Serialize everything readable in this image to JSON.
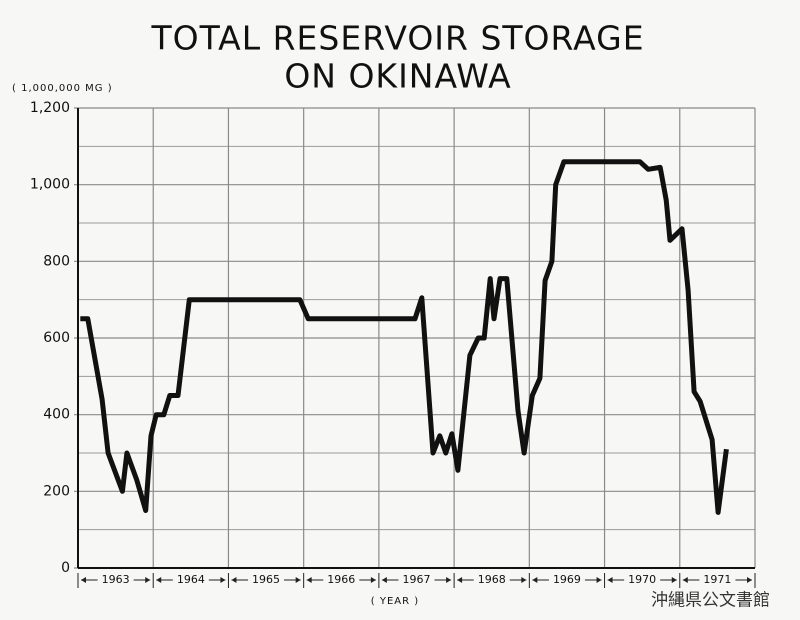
{
  "chart_data": {
    "type": "line",
    "title_lines": [
      "TOTAL RESERVOIR STORAGE",
      "ON OKINAWA"
    ],
    "y_label": "( 1,000,000 MG )",
    "x_label": "( YEAR )",
    "watermark": "沖縄県公文書館",
    "year_labels": [
      "1963",
      "1964",
      "1965",
      "1966",
      "1967",
      "1968",
      "1969",
      "1970",
      "1971"
    ],
    "xlim": [
      1963,
      1972
    ],
    "xticks": [
      1963,
      1964,
      1965,
      1966,
      1967,
      1968,
      1969,
      1970,
      1971,
      1972
    ],
    "ylim": [
      0,
      1200
    ],
    "yticks": [
      0,
      200,
      400,
      600,
      800,
      {
        "value": 1000,
        "label": "1,000"
      },
      {
        "value": 1200,
        "label": "1,200"
      }
    ],
    "minor_yticks": [
      100,
      300,
      500,
      700,
      900,
      1100
    ],
    "grid": true,
    "color": "#111111",
    "x": [
      1963.03,
      1963.13,
      1963.32,
      1963.4,
      1963.59,
      1963.65,
      1963.78,
      1963.9,
      1963.97,
      1964.04,
      1964.14,
      1964.22,
      1964.33,
      1964.48,
      1965.95,
      1966.06,
      1967.48,
      1967.57,
      1967.72,
      1967.81,
      1967.89,
      1967.97,
      1968.05,
      1968.21,
      1968.32,
      1968.4,
      1968.48,
      1968.53,
      1968.61,
      1968.7,
      1968.85,
      1968.93,
      1969.04,
      1969.14,
      1969.21,
      1969.3,
      1969.35,
      1969.46,
      1970.47,
      1970.58,
      1970.74,
      1970.82,
      1970.87,
      1971.03,
      1971.11,
      1971.19,
      1971.27,
      1971.43,
      1971.51,
      1971.62
    ],
    "values": [
      650,
      650,
      440,
      300,
      200,
      300,
      230,
      150,
      345,
      400,
      400,
      450,
      450,
      700,
      700,
      650,
      650,
      705,
      300,
      345,
      300,
      350,
      255,
      555,
      600,
      600,
      755,
      650,
      755,
      755,
      410,
      300,
      450,
      495,
      750,
      800,
      1000,
      1060,
      1060,
      1040,
      1045,
      960,
      855,
      885,
      725,
      460,
      435,
      335,
      145,
      310
    ]
  }
}
